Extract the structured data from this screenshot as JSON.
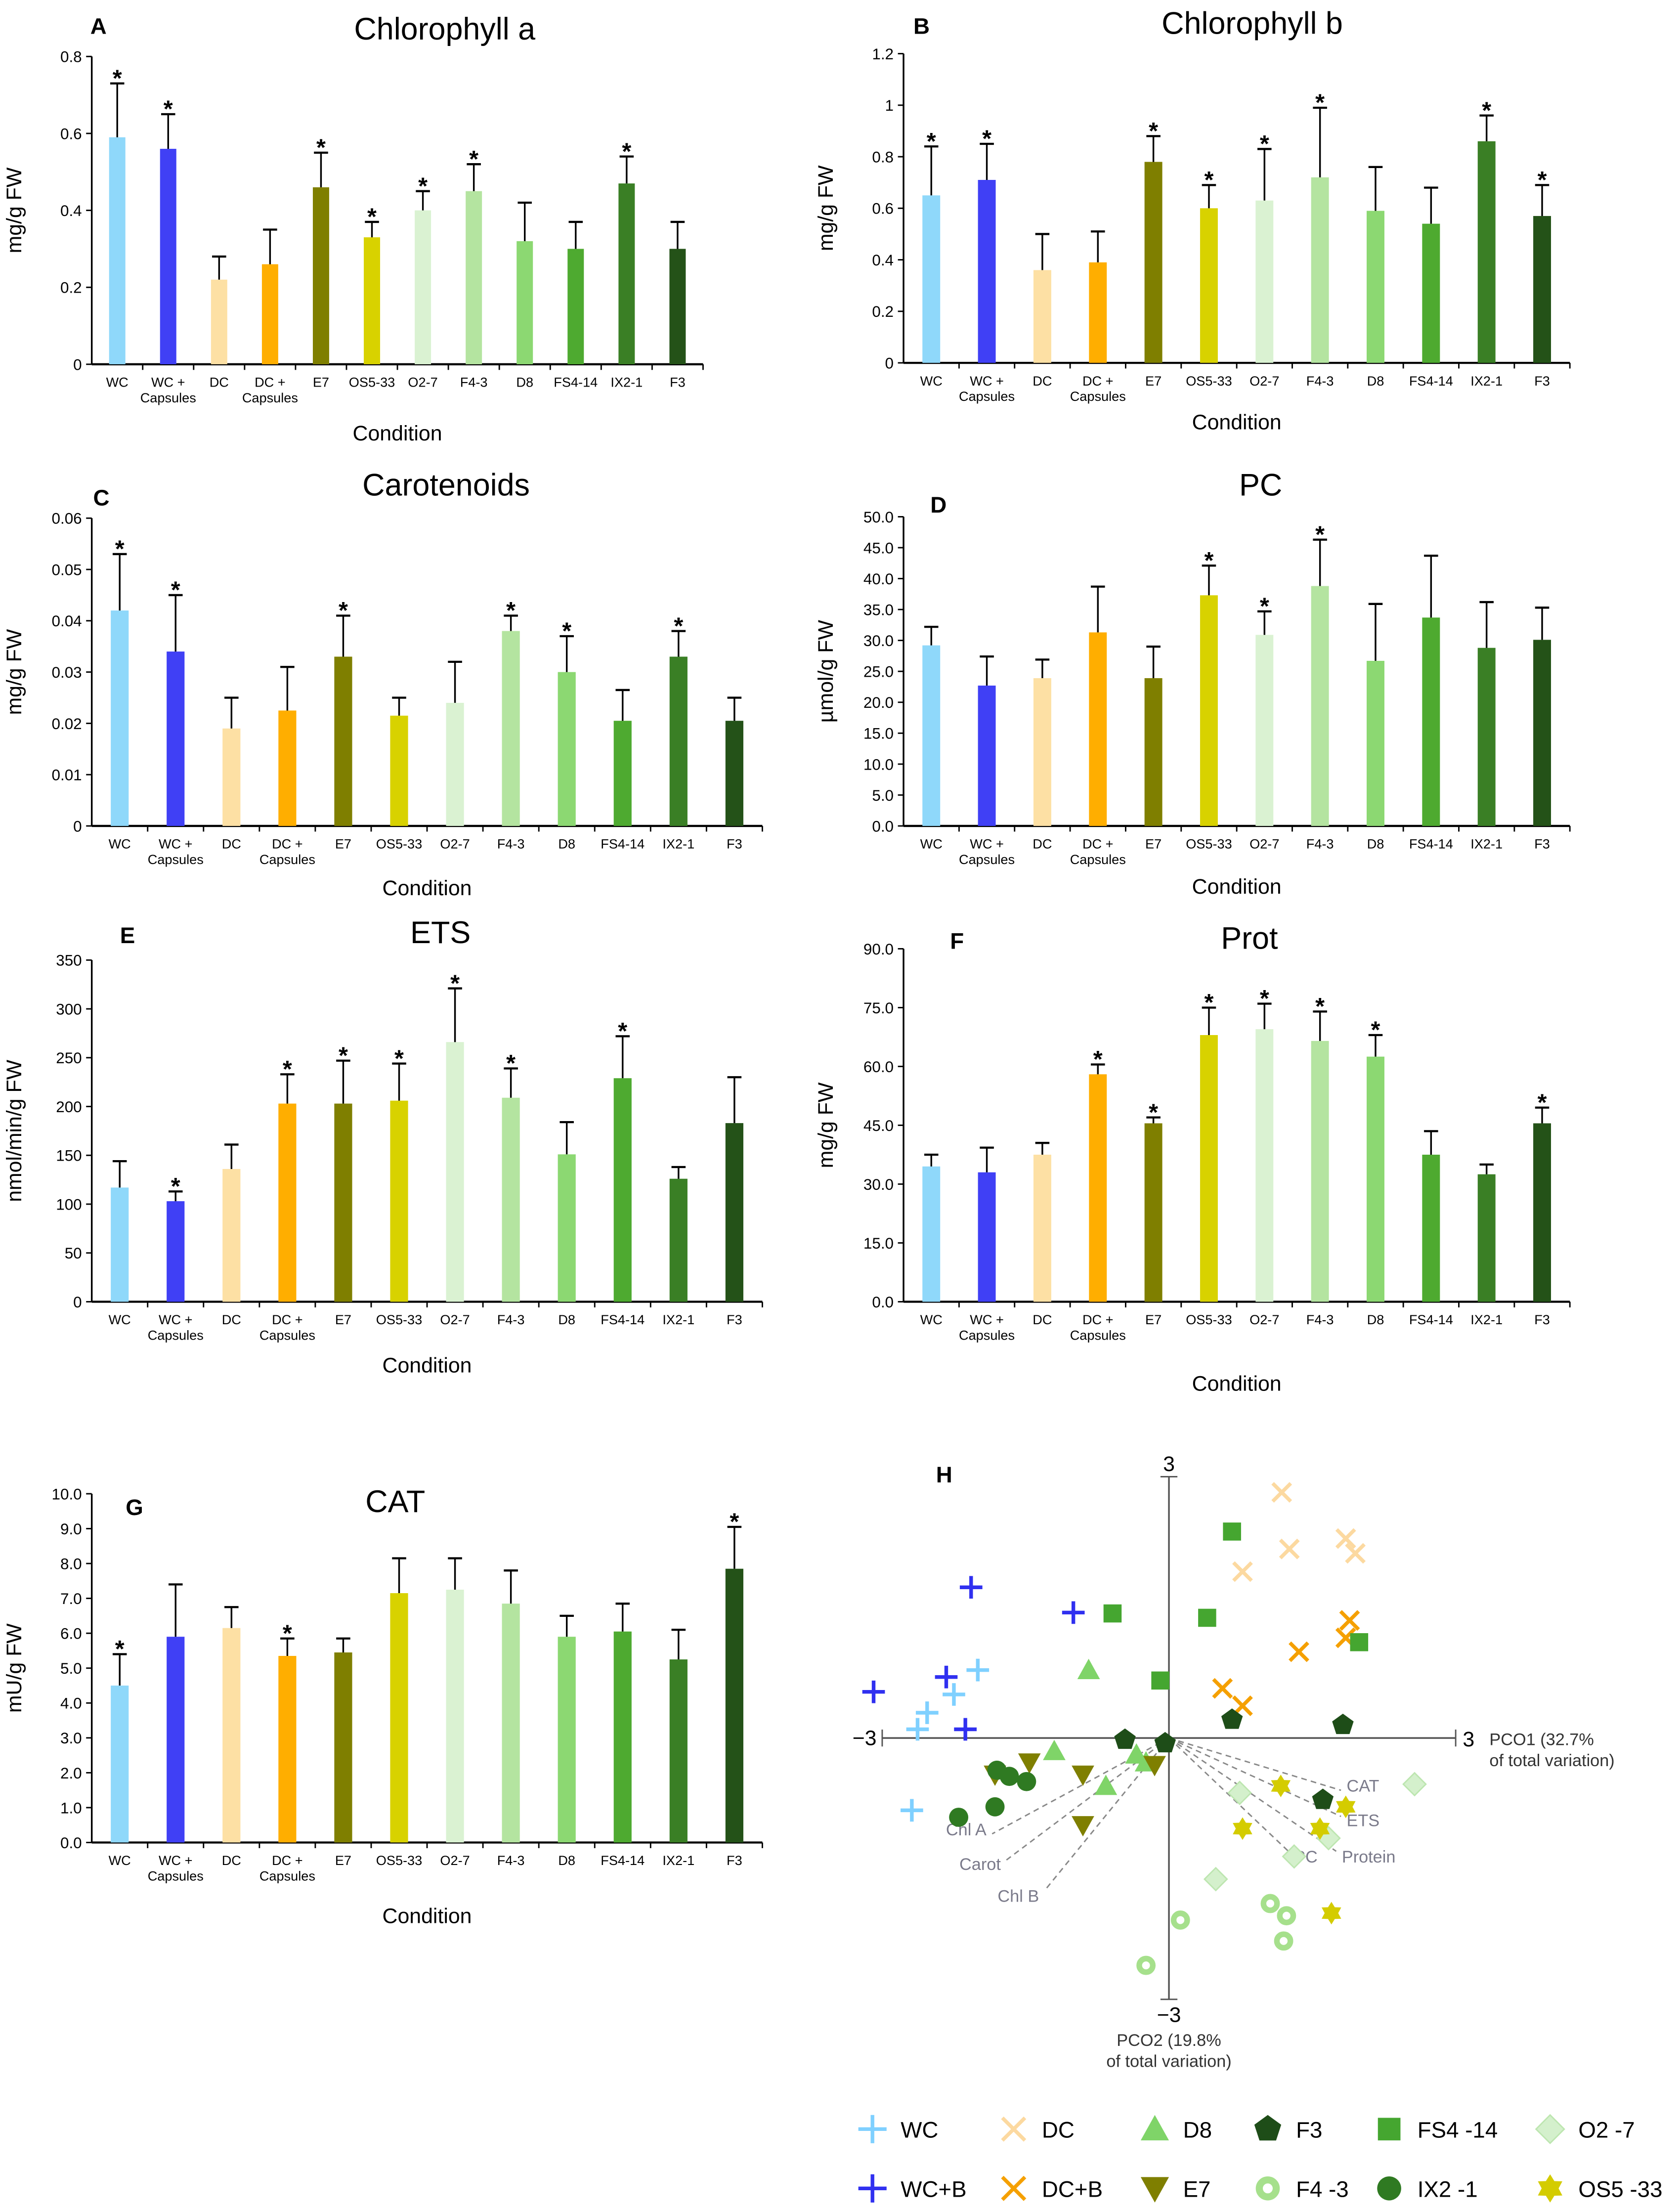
{
  "conditions": [
    "WC",
    "WC + Capsules",
    "DC",
    "DC + Capsules",
    "E7",
    "OS5-33",
    "O2-7",
    "F4-3",
    "D8",
    "FS4-14",
    "IX2-1",
    "F3"
  ],
  "colors": [
    "#8fd8fa",
    "#4040f5",
    "#fde0a4",
    "#ffae00",
    "#7f7f00",
    "#d8d200",
    "#daf2d2",
    "#b4e4a0",
    "#8cd872",
    "#4eaa30",
    "#3a7f25",
    "#245218"
  ],
  "chart_data": [
    {
      "panel": "A",
      "type": "bar",
      "title": "Chlorophyll a",
      "xlabel": "Condition",
      "ylabel": "mg/g FW",
      "ylim": [
        0,
        0.8
      ],
      "yticks": [
        "0",
        "0.2",
        "0.4",
        "0.6",
        "0.8"
      ],
      "values": [
        0.59,
        0.56,
        0.22,
        0.26,
        0.46,
        0.33,
        0.4,
        0.45,
        0.32,
        0.3,
        0.47,
        0.3
      ],
      "errors": [
        0.14,
        0.09,
        0.06,
        0.09,
        0.09,
        0.04,
        0.05,
        0.07,
        0.1,
        0.07,
        0.07,
        0.07
      ],
      "significant": [
        true,
        true,
        false,
        false,
        true,
        true,
        true,
        true,
        false,
        false,
        true,
        false
      ]
    },
    {
      "panel": "B",
      "type": "bar",
      "title": "Chlorophyll b",
      "xlabel": "Condition",
      "ylabel": "mg/g FW",
      "ylim": [
        0,
        1.2
      ],
      "yticks": [
        "0",
        "0.2",
        "0.4",
        "0.6",
        "0.8",
        "1",
        "1.2"
      ],
      "values": [
        0.65,
        0.71,
        0.36,
        0.39,
        0.78,
        0.6,
        0.63,
        0.72,
        0.59,
        0.54,
        0.86,
        0.57
      ],
      "errors": [
        0.19,
        0.14,
        0.14,
        0.12,
        0.1,
        0.09,
        0.2,
        0.27,
        0.17,
        0.14,
        0.1,
        0.12
      ],
      "significant": [
        true,
        true,
        false,
        false,
        true,
        true,
        true,
        true,
        false,
        false,
        true,
        true
      ]
    },
    {
      "panel": "C",
      "type": "bar",
      "title": "Carotenoids",
      "xlabel": "Condition",
      "ylabel": "mg/g FW",
      "ylim": [
        0,
        0.06
      ],
      "yticks": [
        "0",
        "0.01",
        "0.02",
        "0.03",
        "0.04",
        "0.05",
        "0.06"
      ],
      "values": [
        0.042,
        0.034,
        0.019,
        0.0225,
        0.033,
        0.0215,
        0.024,
        0.038,
        0.03,
        0.0205,
        0.033,
        0.0205
      ],
      "errors": [
        0.011,
        0.011,
        0.006,
        0.0085,
        0.008,
        0.0035,
        0.008,
        0.003,
        0.007,
        0.006,
        0.005,
        0.0045
      ],
      "significant": [
        true,
        true,
        false,
        false,
        true,
        false,
        false,
        true,
        true,
        false,
        true,
        false
      ]
    },
    {
      "panel": "D",
      "type": "bar",
      "title": "PC",
      "xlabel": "Condition",
      "ylabel": "µmol/g FW",
      "ylim": [
        0,
        50
      ],
      "yticks": [
        "0.0",
        "5.0",
        "10.0",
        "15.0",
        "20.0",
        "25.0",
        "30.0",
        "35.0",
        "40.0",
        "45.0",
        "50.0"
      ],
      "values": [
        29.2,
        22.7,
        23.9,
        31.3,
        23.9,
        37.3,
        30.9,
        38.8,
        26.7,
        33.7,
        28.8,
        30.1
      ],
      "errors": [
        3.0,
        4.7,
        3.0,
        7.4,
        5.1,
        4.8,
        3.8,
        7.5,
        9.2,
        10.0,
        7.4,
        5.2
      ],
      "significant": [
        false,
        false,
        false,
        false,
        false,
        true,
        true,
        true,
        false,
        false,
        false,
        false
      ]
    },
    {
      "panel": "E",
      "type": "bar",
      "title": "ETS",
      "xlabel": "Condition",
      "ylabel": "nmol/min/g FW",
      "ylim": [
        0,
        350
      ],
      "yticks": [
        "0",
        "50",
        "100",
        "150",
        "200",
        "250",
        "300",
        "350"
      ],
      "values": [
        117,
        103,
        136,
        203,
        203,
        206,
        266,
        209,
        151,
        229,
        126,
        183
      ],
      "errors": [
        27,
        10,
        25,
        30,
        44,
        38,
        55,
        30,
        33,
        43,
        12,
        47
      ],
      "significant": [
        false,
        true,
        false,
        true,
        true,
        true,
        true,
        true,
        false,
        true,
        false,
        false
      ]
    },
    {
      "panel": "F",
      "type": "bar",
      "title": "Prot",
      "xlabel": "Condition",
      "ylabel": "mg/g FW",
      "ylim": [
        0,
        90
      ],
      "yticks": [
        "0.0",
        "15.0",
        "30.0",
        "45.0",
        "60.0",
        "75.0",
        "90.0"
      ],
      "values": [
        34.5,
        33.0,
        37.5,
        58.0,
        45.5,
        68.0,
        69.5,
        66.5,
        62.5,
        37.5,
        32.5,
        45.5
      ],
      "errors": [
        3.0,
        6.3,
        3.0,
        2.5,
        1.5,
        7.0,
        6.5,
        7.5,
        5.5,
        6.0,
        2.5,
        4.0
      ],
      "significant": [
        false,
        false,
        false,
        true,
        true,
        true,
        true,
        true,
        true,
        false,
        false,
        true
      ]
    },
    {
      "panel": "G",
      "type": "bar",
      "title": "CAT",
      "xlabel": "Condition",
      "ylabel": "mU/g FW",
      "ylim": [
        0,
        10
      ],
      "yticks": [
        "0.0",
        "1.0",
        "2.0",
        "3.0",
        "4.0",
        "5.0",
        "6.0",
        "7.0",
        "8.0",
        "9.0",
        "10.0"
      ],
      "values": [
        4.5,
        5.9,
        6.15,
        5.35,
        5.45,
        7.15,
        7.25,
        6.85,
        5.9,
        6.05,
        5.25,
        7.85
      ],
      "errors": [
        0.9,
        1.5,
        0.6,
        0.5,
        0.4,
        1.0,
        0.9,
        0.95,
        0.6,
        0.8,
        0.85,
        1.2
      ],
      "significant": [
        true,
        false,
        false,
        true,
        false,
        false,
        false,
        false,
        false,
        false,
        false,
        true
      ]
    },
    {
      "panel": "H",
      "type": "scatter",
      "xlim": [
        -3,
        3
      ],
      "ylim": [
        -3,
        3
      ],
      "xtick_left": "−3",
      "xtick_right": "3",
      "ytick_top": "3",
      "ytick_bottom": "−3",
      "xlabel_line1": "PCO1 (32.7%",
      "xlabel_line2": "of total variation)",
      "ylabel_line1": "PCO2 (19.8%",
      "ylabel_line2": "of total variation)",
      "vectors": [
        {
          "label": "Chl A",
          "x": -1.85,
          "y": -1.1
        },
        {
          "label": "Carot",
          "x": -1.7,
          "y": -1.4
        },
        {
          "label": "Chl B",
          "x": -1.3,
          "y": -1.75
        },
        {
          "label": "CAT",
          "x": 1.8,
          "y": -0.6
        },
        {
          "label": "ETS",
          "x": 1.8,
          "y": -0.9
        },
        {
          "label": "PC",
          "x": 1.25,
          "y": -1.3
        },
        {
          "label": "Protein",
          "x": 1.75,
          "y": -1.3
        }
      ],
      "series": [
        {
          "name": "WC",
          "marker": "plus",
          "color": "#7fd0ff",
          "points": [
            [
              -2.0,
              0.78
            ],
            [
              -2.25,
              0.5
            ],
            [
              -2.53,
              0.29
            ],
            [
              -2.63,
              0.1
            ],
            [
              -2.69,
              -0.83
            ]
          ]
        },
        {
          "name": "WC+B",
          "marker": "plus",
          "color": "#3030f0",
          "points": [
            [
              -2.07,
              1.73
            ],
            [
              -1.0,
              1.44
            ],
            [
              -2.33,
              0.7
            ],
            [
              -3.09,
              0.53
            ],
            [
              -2.13,
              0.1
            ]
          ]
        },
        {
          "name": "DC",
          "marker": "x",
          "color": "#fcd9a0",
          "points": [
            [
              1.18,
              2.82
            ],
            [
              0.77,
              1.91
            ],
            [
              1.26,
              2.17
            ],
            [
              1.85,
              2.29
            ],
            [
              1.95,
              2.12
            ]
          ]
        },
        {
          "name": "DC+B",
          "marker": "x",
          "color": "#f5a000",
          "points": [
            [
              1.89,
              1.35
            ],
            [
              1.36,
              0.99
            ],
            [
              0.56,
              0.57
            ],
            [
              0.77,
              0.37
            ],
            [
              1.85,
              1.15
            ]
          ]
        },
        {
          "name": "D8",
          "marker": "triangle",
          "color": "#7fd468",
          "points": [
            [
              -0.84,
              0.78
            ],
            [
              -1.2,
              -0.15
            ],
            [
              -0.66,
              -0.55
            ],
            [
              -0.34,
              -0.19
            ],
            [
              -0.24,
              -0.28
            ]
          ]
        },
        {
          "name": "E7",
          "marker": "triangle-down",
          "color": "#7f7f00",
          "points": [
            [
              -1.46,
              -0.28
            ],
            [
              -0.9,
              -0.42
            ],
            [
              -0.9,
              -1.0
            ],
            [
              -0.15,
              -0.31
            ],
            [
              -1.82,
              -0.42
            ]
          ]
        },
        {
          "name": "F3",
          "marker": "pentagon",
          "color": "#1e4d18",
          "points": [
            [
              -0.46,
              -0.02
            ],
            [
              -0.04,
              -0.06
            ],
            [
              0.66,
              0.21
            ],
            [
              1.82,
              0.15
            ],
            [
              1.61,
              -0.71
            ]
          ]
        },
        {
          "name": "F4 -3",
          "marker": "ring",
          "color": "#a6e08c",
          "points": [
            [
              0.12,
              -2.09
            ],
            [
              -0.24,
              -2.61
            ],
            [
              1.23,
              -2.04
            ],
            [
              1.2,
              -2.33
            ],
            [
              1.06,
              -1.9
            ]
          ]
        },
        {
          "name": "FS4 -14",
          "marker": "square",
          "color": "#45a630",
          "points": [
            [
              0.66,
              2.37
            ],
            [
              -0.59,
              1.43
            ],
            [
              0.4,
              1.38
            ],
            [
              -0.09,
              0.66
            ],
            [
              1.99,
              1.1
            ]
          ]
        },
        {
          "name": "IX2 -1",
          "marker": "circle",
          "color": "#2f7a22",
          "points": [
            [
              -1.8,
              -0.37
            ],
            [
              -1.67,
              -0.44
            ],
            [
              -1.49,
              -0.5
            ],
            [
              -1.82,
              -0.79
            ],
            [
              -2.2,
              -0.91
            ]
          ]
        },
        {
          "name": "O2 -7",
          "marker": "diamond",
          "color": "#d4f0cc",
          "points": [
            [
              0.74,
              -0.63
            ],
            [
              1.67,
              -1.15
            ],
            [
              2.57,
              -0.53
            ],
            [
              0.49,
              -1.62
            ],
            [
              1.31,
              -1.36
            ]
          ]
        },
        {
          "name": "OS5 -33",
          "marker": "star",
          "color": "#d4cc00",
          "points": [
            [
              1.17,
              -0.55
            ],
            [
              1.85,
              -0.79
            ],
            [
              0.77,
              -1.04
            ],
            [
              1.58,
              -1.04
            ],
            [
              1.7,
              -2.01
            ]
          ]
        }
      ]
    }
  ]
}
